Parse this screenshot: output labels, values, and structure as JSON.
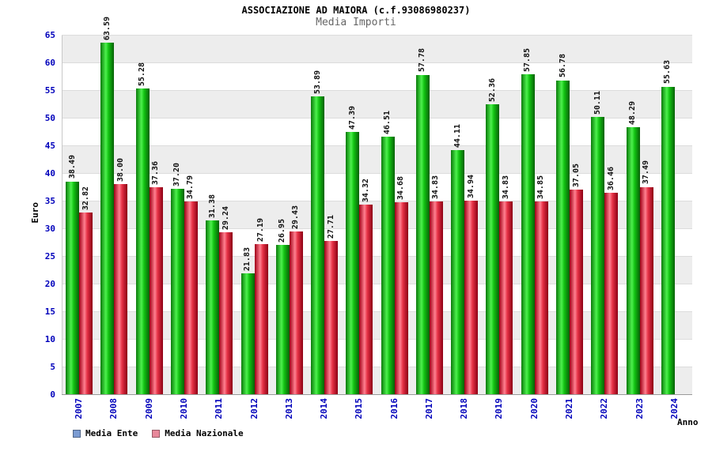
{
  "chart_data": {
    "type": "bar",
    "title": "ASSOCIAZIONE AD MAIORA (c.f.93086980237)",
    "subtitle": "Media Importi",
    "ylabel": "Euro",
    "xlabel": "Anno",
    "ylim": [
      0,
      65
    ],
    "ytick_step": 5,
    "grid": "alternating-horizontal-bands",
    "legend_position": "bottom-left",
    "categories": [
      "2007",
      "2008",
      "2009",
      "2010",
      "2011",
      "2012",
      "2013",
      "2014",
      "2015",
      "2016",
      "2017",
      "2018",
      "2019",
      "2020",
      "2021",
      "2022",
      "2023",
      "2024"
    ],
    "series": [
      {
        "name": "Media Ente",
        "legend_swatch_color": "#7b9bd2",
        "gradient": [
          "#0a7a0a",
          "#4df04d",
          "#12c212",
          "#076007"
        ],
        "values": [
          38.49,
          63.59,
          55.28,
          37.2,
          31.38,
          21.83,
          26.95,
          53.89,
          47.39,
          46.51,
          57.78,
          44.11,
          52.36,
          57.85,
          56.78,
          50.11,
          48.29,
          55.63
        ]
      },
      {
        "name": "Media Nazionale",
        "legend_swatch_color": "#e8889a",
        "gradient": [
          "#a00016",
          "#ff8090",
          "#e63246",
          "#8c0014"
        ],
        "values": [
          32.82,
          38.0,
          37.36,
          34.79,
          29.24,
          27.19,
          29.43,
          27.71,
          34.32,
          34.68,
          34.83,
          34.94,
          34.83,
          34.85,
          37.05,
          36.46,
          37.49,
          null
        ]
      }
    ],
    "colors": {
      "tick_label": "#0000bb",
      "value_label": "#111111",
      "band_gray": "#ededed",
      "band_white": "#ffffff",
      "subtitle": "#666666"
    }
  }
}
